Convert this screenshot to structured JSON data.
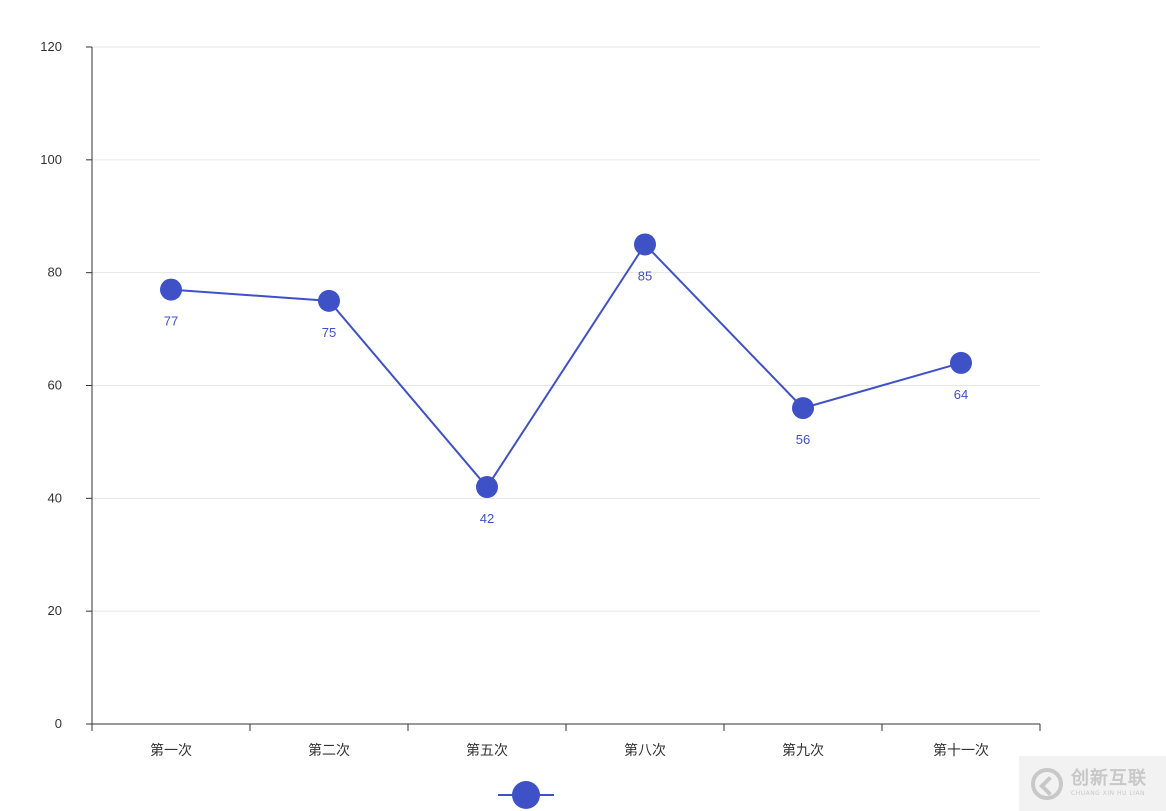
{
  "chart_data": {
    "type": "line",
    "categories": [
      "第一次",
      "第二次",
      "第五次",
      "第八次",
      "第九次",
      "第十一次"
    ],
    "series": [
      {
        "values": [
          77,
          75,
          42,
          85,
          56,
          64
        ],
        "color": "#3f51c7"
      }
    ],
    "ylim": [
      0,
      120
    ],
    "yticks": [
      "0",
      "20",
      "40",
      "60",
      "80",
      "100",
      "120"
    ],
    "data_labels": [
      "77",
      "75",
      "42",
      "85",
      "56",
      "64"
    ],
    "grid": true,
    "legend": "bottom-center"
  },
  "watermark": {
    "main": "创新互联",
    "sub": "CHUANG XIN HU LIAN"
  }
}
